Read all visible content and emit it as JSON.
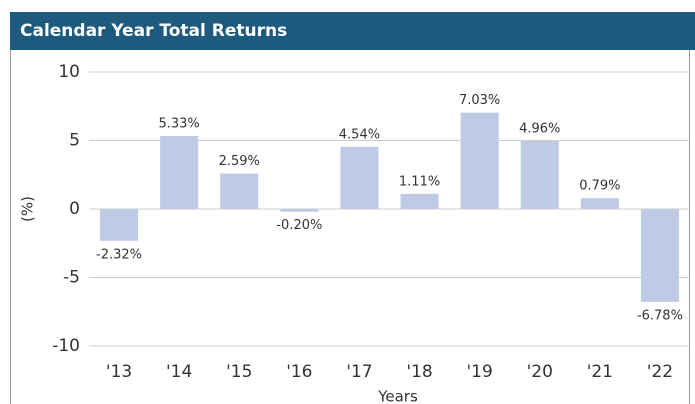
{
  "chart_data": {
    "type": "bar",
    "title": "Calendar Year Total Returns",
    "categories": [
      "'13",
      "'14",
      "'15",
      "'16",
      "'17",
      "'18",
      "'19",
      "'20",
      "'21",
      "'22"
    ],
    "values": [
      -2.32,
      5.33,
      2.59,
      -0.2,
      4.54,
      1.11,
      7.03,
      4.96,
      0.79,
      -6.78
    ],
    "value_labels": [
      "-2.32%",
      "5.33%",
      "2.59%",
      "-0.20%",
      "4.54%",
      "1.11%",
      "7.03%",
      "4.96%",
      "0.79%",
      "-6.78%"
    ],
    "color": "#bfcbe4",
    "ylim": [
      -10,
      10
    ],
    "yticks": [
      -10,
      -5,
      0,
      5,
      10
    ],
    "grid": true,
    "x_label": "Years",
    "y_label": "(%)"
  }
}
